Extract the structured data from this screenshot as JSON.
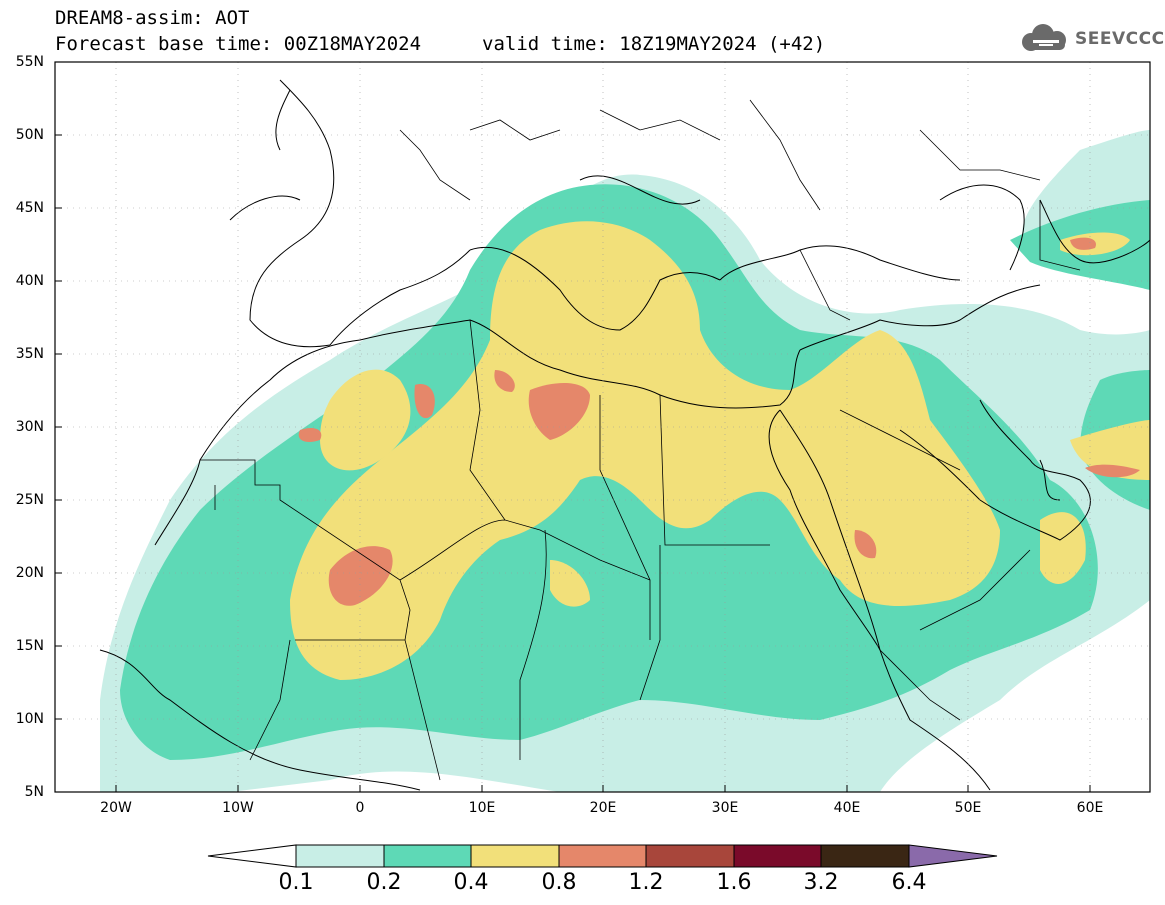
{
  "header": {
    "title_line1": "DREAM8-assim: AOT",
    "title_line2": "Forecast base time: 00Z18MAY2024",
    "valid_time": "valid time: 18Z19MAY2024 (+42)"
  },
  "logo": {
    "text": "SEEVCCC",
    "icon": "cloud-icon"
  },
  "map": {
    "latitude_labels": [
      "55N",
      "50N",
      "45N",
      "40N",
      "35N",
      "30N",
      "25N",
      "20N",
      "15N",
      "10N",
      "5N"
    ],
    "longitude_labels": [
      "20W",
      "10W",
      "0",
      "10E",
      "20E",
      "30E",
      "40E",
      "50E",
      "60E"
    ],
    "extent": {
      "lon_min": -25,
      "lon_max": 65,
      "lat_min": 5,
      "lat_max": 55
    },
    "field": "Aerosol Optical Thickness"
  },
  "colorbar": {
    "levels": [
      "0.1",
      "0.2",
      "0.4",
      "0.8",
      "1.2",
      "1.6",
      "3.2",
      "6.4"
    ],
    "colors": {
      "below": "#ffffff",
      "c1": "#c8eee6",
      "c2": "#5ed9b6",
      "c3": "#f2e07a",
      "c4": "#e5876a",
      "c5": "#a8463b",
      "c6": "#7a0a2a",
      "c7": "#3a2614",
      "above": "#8a6aaa"
    }
  }
}
